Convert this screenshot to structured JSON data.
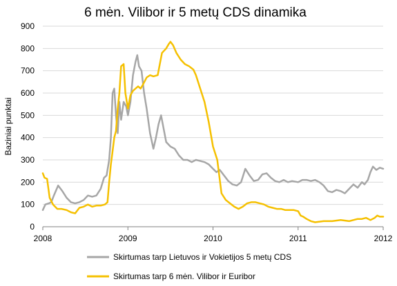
{
  "chart_data": {
    "type": "line",
    "title": "6 mėn. Vilibor ir 5 metų CDS dinamika",
    "xlabel": "",
    "ylabel": "Baziniai punktai",
    "xlim": [
      2008,
      2012
    ],
    "ylim": [
      0,
      900
    ],
    "x_ticks": [
      "2008",
      "2009",
      "2010",
      "2011",
      "2012"
    ],
    "y_ticks": [
      "0",
      "100",
      "200",
      "300",
      "400",
      "500",
      "600",
      "700",
      "800",
      "900"
    ],
    "grid": "horizontal",
    "legend_position": "bottom",
    "series": [
      {
        "name": "Skirtumas tarp Lietuvos ir Vokietijos 5 metų CDS",
        "color": "#a6a6a6",
        "points": [
          [
            2008.0,
            75
          ],
          [
            2008.03,
            100
          ],
          [
            2008.07,
            105
          ],
          [
            2008.1,
            110
          ],
          [
            2008.13,
            140
          ],
          [
            2008.18,
            185
          ],
          [
            2008.23,
            160
          ],
          [
            2008.28,
            130
          ],
          [
            2008.33,
            110
          ],
          [
            2008.38,
            105
          ],
          [
            2008.43,
            110
          ],
          [
            2008.48,
            120
          ],
          [
            2008.53,
            140
          ],
          [
            2008.58,
            135
          ],
          [
            2008.63,
            140
          ],
          [
            2008.68,
            170
          ],
          [
            2008.72,
            220
          ],
          [
            2008.75,
            230
          ],
          [
            2008.78,
            300
          ],
          [
            2008.8,
            400
          ],
          [
            2008.82,
            600
          ],
          [
            2008.84,
            620
          ],
          [
            2008.86,
            500
          ],
          [
            2008.88,
            420
          ],
          [
            2008.9,
            560
          ],
          [
            2008.92,
            480
          ],
          [
            2008.95,
            560
          ],
          [
            2008.98,
            540
          ],
          [
            2009.0,
            500
          ],
          [
            2009.03,
            560
          ],
          [
            2009.06,
            680
          ],
          [
            2009.09,
            740
          ],
          [
            2009.11,
            770
          ],
          [
            2009.13,
            720
          ],
          [
            2009.16,
            700
          ],
          [
            2009.19,
            600
          ],
          [
            2009.22,
            530
          ],
          [
            2009.26,
            420
          ],
          [
            2009.3,
            350
          ],
          [
            2009.33,
            400
          ],
          [
            2009.36,
            460
          ],
          [
            2009.39,
            500
          ],
          [
            2009.42,
            440
          ],
          [
            2009.45,
            380
          ],
          [
            2009.5,
            360
          ],
          [
            2009.55,
            350
          ],
          [
            2009.6,
            320
          ],
          [
            2009.65,
            300
          ],
          [
            2009.7,
            300
          ],
          [
            2009.75,
            290
          ],
          [
            2009.8,
            300
          ],
          [
            2009.85,
            295
          ],
          [
            2009.9,
            290
          ],
          [
            2009.95,
            280
          ],
          [
            2010.0,
            260
          ],
          [
            2010.04,
            245
          ],
          [
            2010.08,
            255
          ],
          [
            2010.13,
            230
          ],
          [
            2010.18,
            205
          ],
          [
            2010.23,
            190
          ],
          [
            2010.28,
            185
          ],
          [
            2010.33,
            200
          ],
          [
            2010.38,
            260
          ],
          [
            2010.43,
            230
          ],
          [
            2010.48,
            205
          ],
          [
            2010.53,
            210
          ],
          [
            2010.58,
            235
          ],
          [
            2010.63,
            240
          ],
          [
            2010.68,
            220
          ],
          [
            2010.73,
            205
          ],
          [
            2010.78,
            200
          ],
          [
            2010.83,
            210
          ],
          [
            2010.88,
            200
          ],
          [
            2010.93,
            205
          ],
          [
            2011.0,
            200
          ],
          [
            2011.05,
            210
          ],
          [
            2011.1,
            210
          ],
          [
            2011.15,
            205
          ],
          [
            2011.2,
            210
          ],
          [
            2011.25,
            200
          ],
          [
            2011.3,
            185
          ],
          [
            2011.35,
            160
          ],
          [
            2011.4,
            155
          ],
          [
            2011.45,
            165
          ],
          [
            2011.5,
            160
          ],
          [
            2011.55,
            150
          ],
          [
            2011.6,
            170
          ],
          [
            2011.65,
            190
          ],
          [
            2011.7,
            175
          ],
          [
            2011.75,
            200
          ],
          [
            2011.78,
            190
          ],
          [
            2011.82,
            210
          ],
          [
            2011.85,
            245
          ],
          [
            2011.88,
            270
          ],
          [
            2011.92,
            255
          ],
          [
            2011.96,
            265
          ],
          [
            2012.0,
            260
          ]
        ]
      },
      {
        "name": "Skirtumas tarp 6 mėn. Vilibor ir Euribor",
        "color": "#f5c000",
        "points": [
          [
            2008.0,
            240
          ],
          [
            2008.02,
            220
          ],
          [
            2008.05,
            215
          ],
          [
            2008.08,
            130
          ],
          [
            2008.12,
            100
          ],
          [
            2008.17,
            80
          ],
          [
            2008.22,
            80
          ],
          [
            2008.28,
            75
          ],
          [
            2008.33,
            65
          ],
          [
            2008.38,
            60
          ],
          [
            2008.43,
            85
          ],
          [
            2008.48,
            90
          ],
          [
            2008.53,
            100
          ],
          [
            2008.58,
            90
          ],
          [
            2008.63,
            95
          ],
          [
            2008.68,
            95
          ],
          [
            2008.73,
            100
          ],
          [
            2008.76,
            110
          ],
          [
            2008.78,
            200
          ],
          [
            2008.8,
            280
          ],
          [
            2008.82,
            340
          ],
          [
            2008.84,
            400
          ],
          [
            2008.86,
            430
          ],
          [
            2008.88,
            530
          ],
          [
            2008.9,
            600
          ],
          [
            2008.92,
            720
          ],
          [
            2008.95,
            730
          ],
          [
            2008.97,
            600
          ],
          [
            2009.0,
            530
          ],
          [
            2009.03,
            590
          ],
          [
            2009.06,
            610
          ],
          [
            2009.09,
            620
          ],
          [
            2009.12,
            630
          ],
          [
            2009.15,
            620
          ],
          [
            2009.18,
            640
          ],
          [
            2009.22,
            670
          ],
          [
            2009.26,
            680
          ],
          [
            2009.3,
            675
          ],
          [
            2009.35,
            680
          ],
          [
            2009.4,
            780
          ],
          [
            2009.45,
            800
          ],
          [
            2009.48,
            820
          ],
          [
            2009.5,
            830
          ],
          [
            2009.53,
            815
          ],
          [
            2009.57,
            780
          ],
          [
            2009.62,
            750
          ],
          [
            2009.67,
            730
          ],
          [
            2009.72,
            720
          ],
          [
            2009.77,
            705
          ],
          [
            2009.8,
            680
          ],
          [
            2009.85,
            620
          ],
          [
            2009.9,
            560
          ],
          [
            2009.95,
            470
          ],
          [
            2010.0,
            360
          ],
          [
            2010.05,
            300
          ],
          [
            2010.1,
            150
          ],
          [
            2010.15,
            120
          ],
          [
            2010.2,
            105
          ],
          [
            2010.25,
            90
          ],
          [
            2010.3,
            80
          ],
          [
            2010.35,
            90
          ],
          [
            2010.4,
            105
          ],
          [
            2010.45,
            110
          ],
          [
            2010.5,
            110
          ],
          [
            2010.55,
            105
          ],
          [
            2010.6,
            100
          ],
          [
            2010.65,
            90
          ],
          [
            2010.7,
            85
          ],
          [
            2010.75,
            80
          ],
          [
            2010.8,
            80
          ],
          [
            2010.85,
            75
          ],
          [
            2010.9,
            75
          ],
          [
            2010.95,
            75
          ],
          [
            2011.0,
            70
          ],
          [
            2011.03,
            50
          ],
          [
            2011.06,
            45
          ],
          [
            2011.1,
            35
          ],
          [
            2011.15,
            25
          ],
          [
            2011.2,
            20
          ],
          [
            2011.3,
            25
          ],
          [
            2011.4,
            25
          ],
          [
            2011.5,
            30
          ],
          [
            2011.6,
            25
          ],
          [
            2011.7,
            35
          ],
          [
            2011.75,
            35
          ],
          [
            2011.8,
            40
          ],
          [
            2011.85,
            30
          ],
          [
            2011.9,
            40
          ],
          [
            2011.93,
            50
          ],
          [
            2011.96,
            45
          ],
          [
            2012.0,
            45
          ]
        ]
      }
    ]
  }
}
